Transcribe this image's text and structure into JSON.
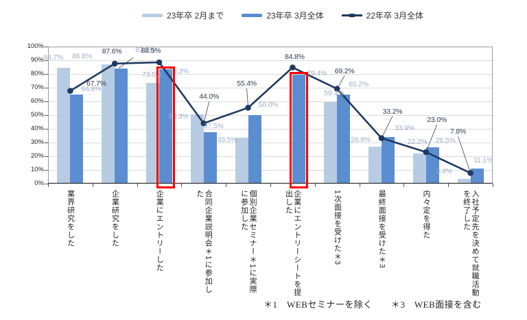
{
  "legend": [
    {
      "label": "23年卒 2月まで",
      "type": "bar",
      "color": "#b7cbe3"
    },
    {
      "label": "23年卒 3月全体",
      "type": "bar",
      "color": "#5a8ed0"
    },
    {
      "label": "22年卒 3月全体",
      "type": "line",
      "color": "#1f3a60"
    }
  ],
  "footnote": "＊1　WEBセミナーを除く　　＊3　WEB面接を含む",
  "chart_data": {
    "type": "bar+line",
    "categories": [
      "業界研究をした",
      "企業研究をした",
      "企業にエントリーした",
      "合同企業説明会＊1に参加した",
      "個別企業セミナー＊1に実際に参加した",
      "企業にエントリーシートを提出した",
      "1次面接を受けた＊3",
      "最終面接を受けた＊3",
      "内々定を得た",
      "入社予定先を決めて就職活動を終了した"
    ],
    "series": [
      {
        "name": "23年卒 2月まで",
        "type": "bar",
        "color": "#b7cbe3",
        "values": [
          84.7,
          86.8,
          73.5,
          50.3,
          33.5,
          null,
          59.4,
          26.8,
          22.2,
          3.4
        ]
      },
      {
        "name": "23年卒 3月全体",
        "type": "bar",
        "color": "#5a8ed0",
        "values": [
          64.8,
          83.9,
          83.3,
          37.5,
          50.0,
          79.4,
          65.2,
          33.9,
          26.5,
          11.1
        ]
      },
      {
        "name": "22年卒 3月全体",
        "type": "line",
        "color": "#1f3a60",
        "values": [
          67.7,
          87.6,
          88.5,
          44.0,
          55.4,
          84.8,
          69.2,
          33.2,
          23.0,
          7.8
        ]
      }
    ],
    "ylim": [
      0,
      100
    ],
    "ytick_step": 10,
    "ytick_suffix": "%",
    "grid": true,
    "legend_position": "top",
    "highlights": {
      "series": "23年卒 3月全体",
      "category_indexes": [
        2,
        5
      ],
      "color": "#ff0000"
    }
  },
  "label_colors": {
    "bar_label": "#9fafc7",
    "line_label": "#2e3a50"
  }
}
